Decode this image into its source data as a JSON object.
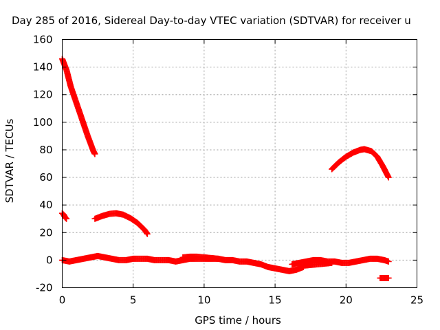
{
  "chart_data": {
    "type": "scatter",
    "title": "Day 285 of 2016, Sidereal Day-to-day VTEC variation (SDTVAR) for receiver u",
    "xlabel": "GPS time / hours",
    "ylabel": "SDTVAR / TECUs",
    "xlim": [
      0,
      25
    ],
    "ylim": [
      -20,
      160
    ],
    "xticks": [
      0,
      5,
      10,
      15,
      20,
      25
    ],
    "yticks": [
      -20,
      0,
      20,
      40,
      60,
      80,
      100,
      120,
      140,
      160
    ],
    "grid": true,
    "legend": "none",
    "marker": "plus",
    "color": "#ff0000",
    "segments": [
      {
        "x": [
          0.0,
          0.3,
          0.6,
          1.0,
          1.4,
          1.8,
          2.2,
          2.3
        ],
        "y": [
          146,
          138,
          126,
          114,
          102,
          90,
          79,
          77
        ]
      },
      {
        "x": [
          0.0,
          0.1,
          0.2,
          0.3
        ],
        "y": [
          34,
          33,
          31,
          30
        ]
      },
      {
        "x": [
          2.3,
          2.8,
          3.3,
          3.8,
          4.3,
          4.8,
          5.3,
          5.8,
          6.0
        ],
        "y": [
          30,
          32,
          33.5,
          34,
          33,
          30.5,
          27,
          22,
          19
        ]
      },
      {
        "x": [
          19.0,
          19.5,
          20.0,
          20.5,
          21.0,
          21.3,
          21.8,
          22.2,
          22.6,
          23.0
        ],
        "y": [
          66,
          71,
          75,
          78,
          80,
          80.5,
          79,
          75,
          68,
          60
        ]
      },
      {
        "x": [
          0,
          0.5,
          1,
          1.5,
          2,
          2.5,
          3,
          3.5,
          4,
          4.5,
          5,
          5.5,
          6,
          6.5,
          7,
          7.5,
          8,
          8.5,
          9,
          9.5,
          10,
          10.5,
          11,
          11.5,
          12,
          12.5,
          13,
          13.5,
          14,
          14.5,
          15,
          15.5,
          16,
          16.5,
          17
        ],
        "y": [
          0,
          -1,
          0,
          1,
          2,
          3,
          2,
          1,
          0,
          0,
          1,
          1,
          1,
          0,
          0,
          0,
          -1,
          0,
          1,
          1,
          1,
          1,
          1,
          0,
          0,
          -1,
          -1,
          -2,
          -3,
          -5,
          -6,
          -7,
          -8,
          -7,
          -5
        ]
      },
      {
        "x": [
          8.5,
          9.0,
          9.5,
          10.0,
          10.5,
          11.0
        ],
        "y": [
          2,
          2.5,
          2.5,
          2,
          1.5,
          1
        ]
      },
      {
        "x": [
          16.2,
          16.7,
          17.2,
          17.7,
          18.2,
          18.7,
          19.2,
          19.7,
          20.2,
          20.7,
          21.2,
          21.7,
          22.2,
          22.7,
          23.0
        ],
        "y": [
          -3,
          -2,
          -1,
          0,
          0,
          -1,
          -1,
          -2,
          -2,
          -1,
          0,
          1,
          1,
          0,
          -1
        ]
      },
      {
        "x": [
          17.0,
          17.5,
          18.0,
          18.5,
          19.0
        ],
        "y": [
          -4,
          -3.5,
          -3,
          -2.5,
          -2
        ]
      },
      {
        "x": [
          22.4,
          22.6,
          22.8,
          23.0
        ],
        "y": [
          -13,
          -13,
          -13,
          -13
        ]
      }
    ]
  }
}
